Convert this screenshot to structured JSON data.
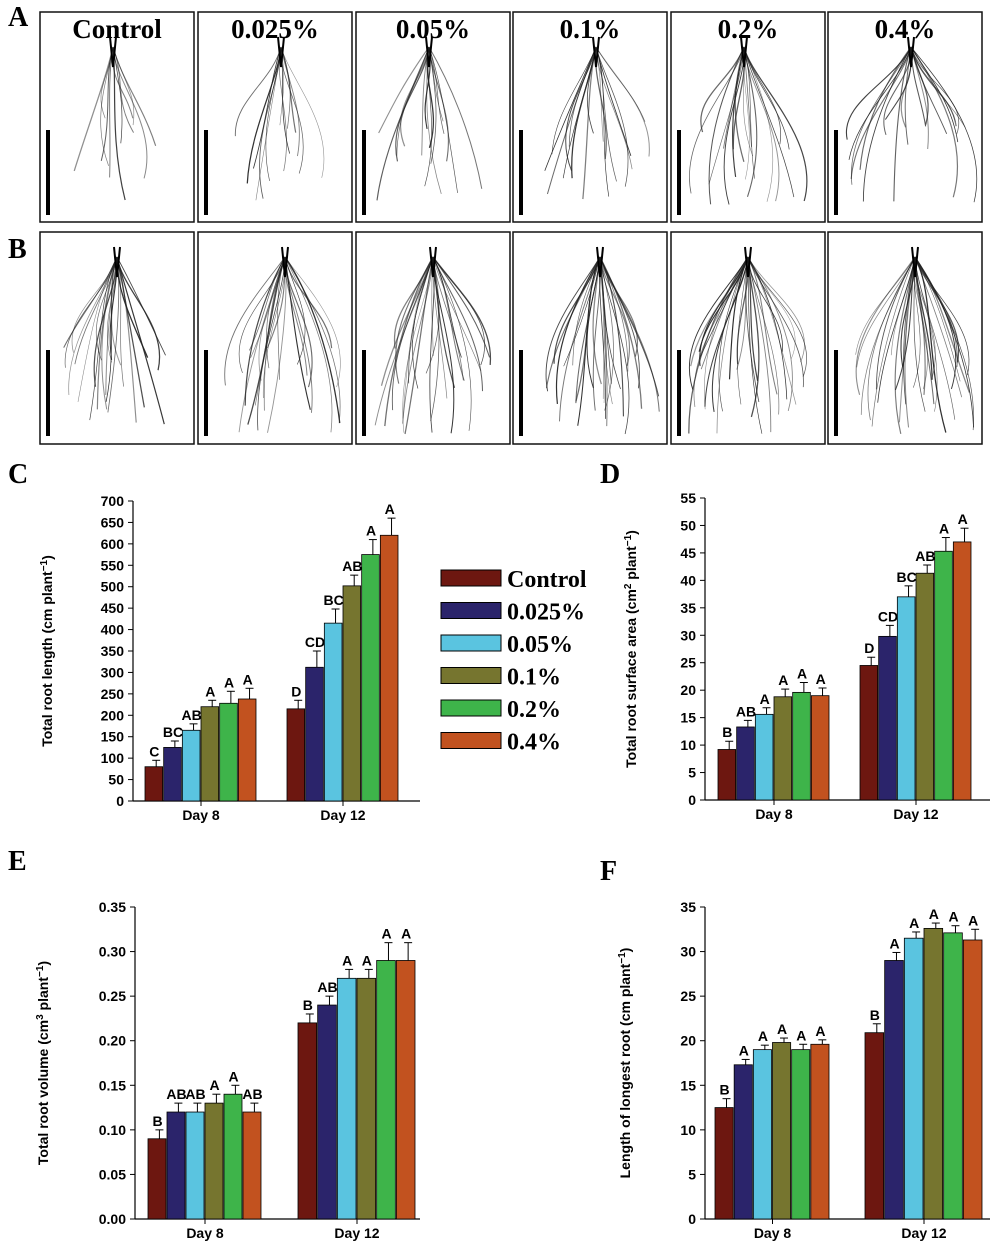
{
  "panel_letters": {
    "A": "A",
    "B": "B",
    "C": "C",
    "D": "D",
    "E": "E",
    "F": "F"
  },
  "treatments": [
    "Control",
    "0.025%",
    "0.05%",
    "0.1%",
    "0.2%",
    "0.4%"
  ],
  "colors": {
    "Control": "#6d1710",
    "0.025%": "#2b246b",
    "0.05%": "#5ac4e0",
    "0.1%": "#76752f",
    "0.2%": "#3eb44a",
    "0.4%": "#c2521f",
    "scale_bar": "#000000",
    "root": "#222222"
  },
  "legend": {
    "entries": [
      "Control",
      "0.025%",
      "0.05%",
      "0.1%",
      "0.2%",
      "0.4%"
    ]
  },
  "chart_data": [
    {
      "panel": "C",
      "type": "bar",
      "categories": [
        "Day 8",
        "Day 12"
      ],
      "ylabel_pre": "Total root length (cm plant",
      "ylabel_sup": "−1",
      "ylabel_post": ")",
      "ylim": [
        0,
        700
      ],
      "yticks": [
        0,
        50,
        100,
        150,
        200,
        250,
        300,
        350,
        400,
        450,
        500,
        550,
        600,
        650,
        700
      ],
      "series": [
        {
          "name": "Control",
          "values": [
            80,
            215
          ],
          "errors": [
            15,
            20
          ],
          "letters": [
            "C",
            "D"
          ]
        },
        {
          "name": "0.025%",
          "values": [
            125,
            312
          ],
          "errors": [
            15,
            38
          ],
          "letters": [
            "BC",
            "CD"
          ]
        },
        {
          "name": "0.05%",
          "values": [
            165,
            415
          ],
          "errors": [
            15,
            33
          ],
          "letters": [
            "AB",
            "BC"
          ]
        },
        {
          "name": "0.1%",
          "values": [
            220,
            502
          ],
          "errors": [
            15,
            25
          ],
          "letters": [
            "A",
            "AB"
          ]
        },
        {
          "name": "0.2%",
          "values": [
            228,
            575
          ],
          "errors": [
            28,
            35
          ],
          "letters": [
            "A",
            "A"
          ]
        },
        {
          "name": "0.4%",
          "values": [
            238,
            620
          ],
          "errors": [
            25,
            40
          ],
          "letters": [
            "A",
            "A"
          ]
        }
      ]
    },
    {
      "panel": "D",
      "type": "bar",
      "categories": [
        "Day 8",
        "Day 12"
      ],
      "ylabel_pre": "Total root surface area (cm",
      "ylabel_sup": "2",
      "ylabel_mid": " plant",
      "ylabel_sup2": "−1",
      "ylabel_post": ")",
      "ylim": [
        0,
        55
      ],
      "yticks": [
        0,
        5,
        10,
        15,
        20,
        25,
        30,
        35,
        40,
        45,
        50,
        55
      ],
      "series": [
        {
          "name": "Control",
          "values": [
            9.2,
            24.5
          ],
          "errors": [
            1.5,
            1.5
          ],
          "letters": [
            "B",
            "D"
          ]
        },
        {
          "name": "0.025%",
          "values": [
            13.3,
            29.8
          ],
          "errors": [
            1.2,
            2.0
          ],
          "letters": [
            "AB",
            "CD"
          ]
        },
        {
          "name": "0.05%",
          "values": [
            15.6,
            37.0
          ],
          "errors": [
            1.2,
            2.0
          ],
          "letters": [
            "A",
            "BC"
          ]
        },
        {
          "name": "0.1%",
          "values": [
            18.8,
            41.3
          ],
          "errors": [
            1.4,
            1.5
          ],
          "letters": [
            "A",
            "AB"
          ]
        },
        {
          "name": "0.2%",
          "values": [
            19.6,
            45.3
          ],
          "errors": [
            1.8,
            2.5
          ],
          "letters": [
            "A",
            "A"
          ]
        },
        {
          "name": "0.4%",
          "values": [
            19.0,
            47.0
          ],
          "errors": [
            1.4,
            2.5
          ],
          "letters": [
            "A",
            "A"
          ]
        }
      ]
    },
    {
      "panel": "E",
      "type": "bar",
      "categories": [
        "Day 8",
        "Day 12"
      ],
      "ylabel_pre": "Total root volume (cm",
      "ylabel_sup": "3",
      "ylabel_mid": " plant",
      "ylabel_sup2": "−1",
      "ylabel_post": ")",
      "ylim": [
        0,
        0.35
      ],
      "yticks": [
        "0.00",
        "0.05",
        "0.10",
        "0.15",
        "0.20",
        "0.25",
        "0.30",
        "0.35"
      ],
      "series": [
        {
          "name": "Control",
          "values": [
            0.09,
            0.22
          ],
          "errors": [
            0.01,
            0.01
          ],
          "letters": [
            "B",
            "B"
          ]
        },
        {
          "name": "0.025%",
          "values": [
            0.12,
            0.24
          ],
          "errors": [
            0.01,
            0.01
          ],
          "letters": [
            "AB",
            "AB"
          ]
        },
        {
          "name": "0.05%",
          "values": [
            0.12,
            0.27
          ],
          "errors": [
            0.01,
            0.01
          ],
          "letters": [
            "AB",
            "A"
          ]
        },
        {
          "name": "0.1%",
          "values": [
            0.13,
            0.27
          ],
          "errors": [
            0.01,
            0.01
          ],
          "letters": [
            "A",
            "A"
          ]
        },
        {
          "name": "0.2%",
          "values": [
            0.14,
            0.29
          ],
          "errors": [
            0.01,
            0.02
          ],
          "letters": [
            "A",
            "A"
          ]
        },
        {
          "name": "0.4%",
          "values": [
            0.12,
            0.29
          ],
          "errors": [
            0.01,
            0.02
          ],
          "letters": [
            "AB",
            "A"
          ]
        }
      ]
    },
    {
      "panel": "F",
      "type": "bar",
      "categories": [
        "Day 8",
        "Day 12"
      ],
      "ylabel_pre": "Length of longest root (cm plant",
      "ylabel_sup": "−1",
      "ylabel_post": ")",
      "ylim": [
        0,
        35
      ],
      "yticks": [
        0,
        5,
        10,
        15,
        20,
        25,
        30,
        35
      ],
      "series": [
        {
          "name": "Control",
          "values": [
            12.5,
            20.9
          ],
          "errors": [
            1.0,
            1.0
          ],
          "letters": [
            "B",
            "B"
          ]
        },
        {
          "name": "0.025%",
          "values": [
            17.3,
            29.0
          ],
          "errors": [
            0.6,
            0.9
          ],
          "letters": [
            "A",
            "A"
          ]
        },
        {
          "name": "0.05%",
          "values": [
            19.0,
            31.5
          ],
          "errors": [
            0.5,
            0.7
          ],
          "letters": [
            "A",
            "A"
          ]
        },
        {
          "name": "0.1%",
          "values": [
            19.8,
            32.6
          ],
          "errors": [
            0.5,
            0.6
          ],
          "letters": [
            "A",
            "A"
          ]
        },
        {
          "name": "0.2%",
          "values": [
            19.0,
            32.1
          ],
          "errors": [
            0.6,
            0.8
          ],
          "letters": [
            "A",
            "A"
          ]
        },
        {
          "name": "0.4%",
          "values": [
            19.6,
            31.3
          ],
          "errors": [
            0.5,
            1.2
          ],
          "letters": [
            "A",
            "A"
          ]
        }
      ]
    }
  ]
}
